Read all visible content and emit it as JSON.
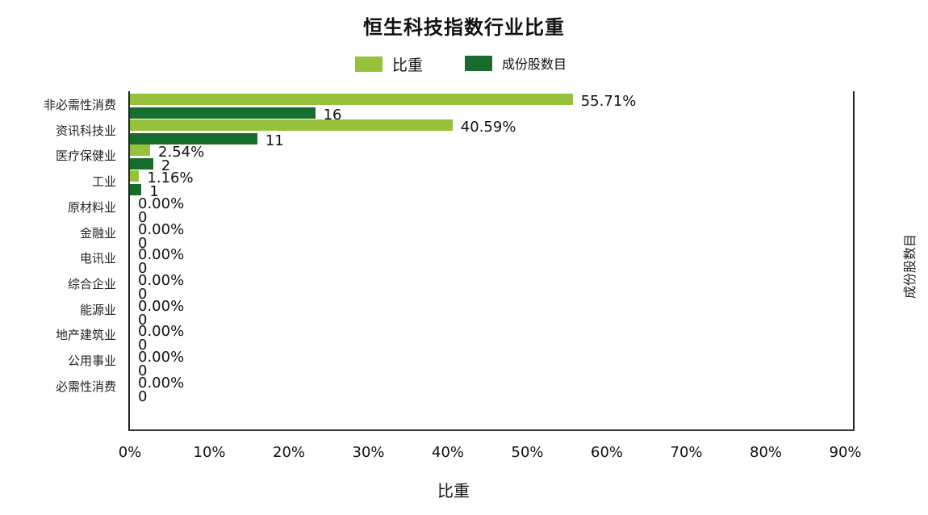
{
  "chart_data": {
    "type": "bar",
    "orientation": "horizontal",
    "title": "恒生科技指数行业比重",
    "xlabel": "比重",
    "y2label": "成份股数目",
    "xlim": [
      0,
      90
    ],
    "x_ticks": [
      "0%",
      "10%",
      "20%",
      "30%",
      "40%",
      "50%",
      "60%",
      "70%",
      "80%",
      "90%"
    ],
    "grid": false,
    "legend_position": "top",
    "categories": [
      "非必需性消费",
      "资讯科技业",
      "医疗保健业",
      "工业",
      "原材料业",
      "金融业",
      "电讯业",
      "综合企业",
      "能源业",
      "地产建筑业",
      "公用事业",
      "必需性消费"
    ],
    "series": [
      {
        "name": "比重",
        "color": "#96c13a",
        "values": [
          55.71,
          40.59,
          2.54,
          1.16,
          0,
          0,
          0,
          0,
          0,
          0,
          0,
          0
        ],
        "labels": [
          "55.71%",
          "40.59%",
          "2.54%",
          "1.16%",
          "0.00%",
          "0.00%",
          "0.00%",
          "0.00%",
          "0.00%",
          "0.00%",
          "0.00%",
          "0.00%"
        ]
      },
      {
        "name": "成份股数目",
        "color": "#176d2b",
        "values": [
          16,
          11,
          2,
          1,
          0,
          0,
          0,
          0,
          0,
          0,
          0,
          0
        ],
        "labels": [
          "16",
          "11",
          "2",
          "1",
          "0",
          "0",
          "0",
          "0",
          "0",
          "0",
          "0",
          "0"
        ]
      }
    ]
  },
  "legend": {
    "share_label": "比重",
    "count_label": "成份股数目"
  }
}
